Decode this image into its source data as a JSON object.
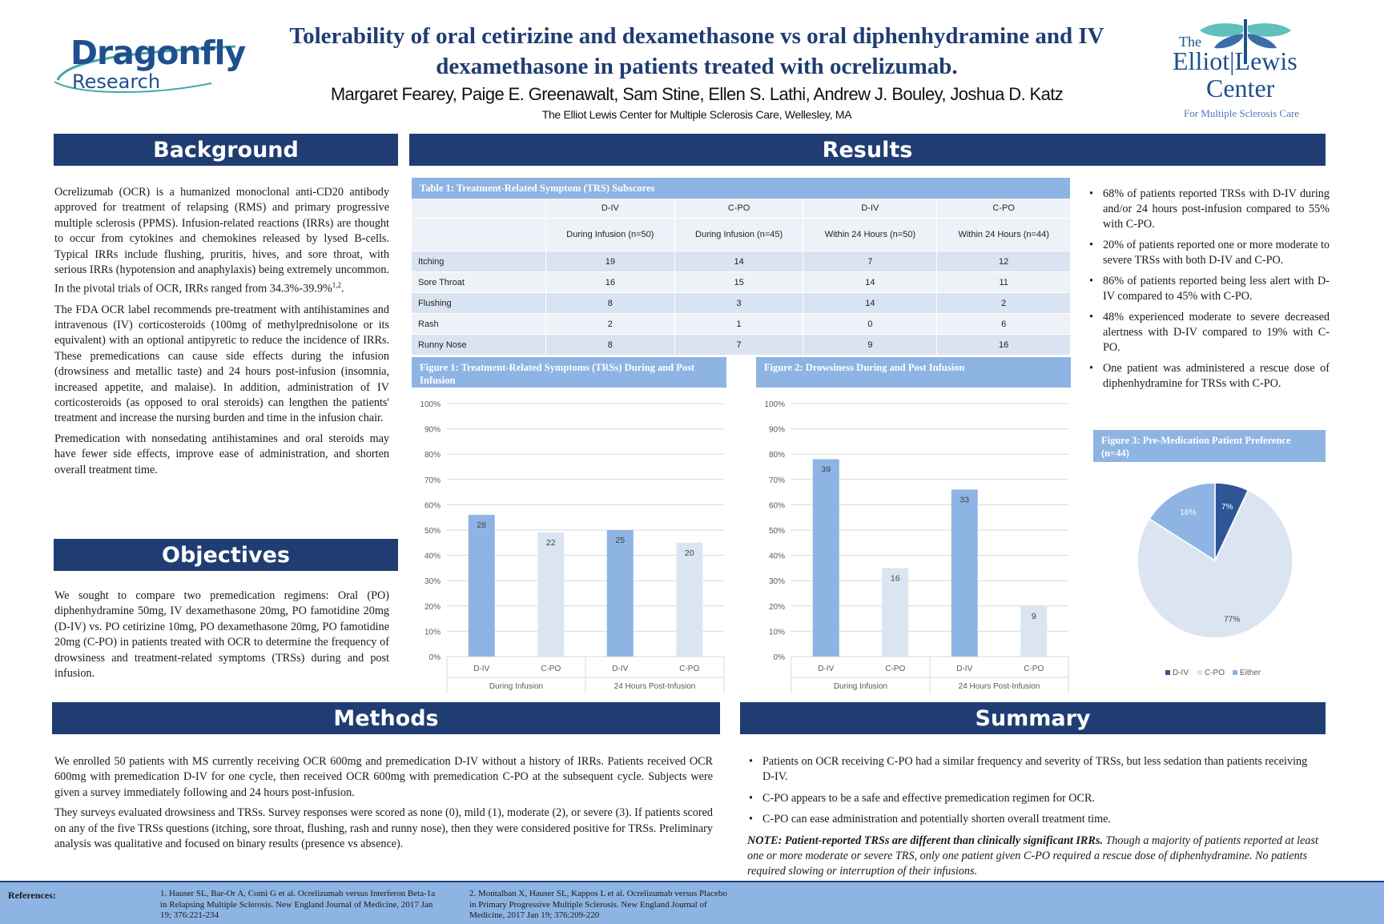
{
  "header": {
    "logo_left_line1": "Dragonfly",
    "logo_left_line2": "Research",
    "title_line1": "Tolerability of oral cetirizine and dexamethasone vs oral diphenhydramine and IV",
    "title_line2": "dexamethasone in patients treated with ocrelizumab.",
    "authors": "Margaret Fearey, Paige E. Greenawalt, Sam Stine, Ellen S. Lathi, Andrew J. Bouley, Joshua D. Katz",
    "affiliation": "The Elliot Lewis Center for Multiple Sclerosis Care, Wellesley, MA",
    "logo_right_the": "The",
    "logo_right_name1": "Elliot",
    "logo_right_name2": "Lewis",
    "logo_right_center": "Center",
    "logo_right_tag": "For Multiple Sclerosis Care"
  },
  "background": {
    "heading": "Background",
    "p1": "Ocrelizumab (OCR) is a humanized monoclonal anti-CD20 antibody approved for treatment of relapsing (RMS) and primary progressive multiple sclerosis (PPMS). Infusion-related reactions (IRRs) are thought to occur from cytokines and chemokines released by lysed B-cells. Typical IRRs include flushing, pruritis, hives, and sore throat, with serious IRRs (hypotension and anaphylaxis) being extremely uncommon. In the pivotal trials of OCR, IRRs ranged from 34.3%-39.9%",
    "p1_sup": "1,2",
    "p1_end": ".",
    "p2": "The FDA OCR label recommends pre-treatment with antihistamines and intravenous (IV) corticosteroids (100mg of methylprednisolone or its equivalent) with an optional antipyretic to reduce the incidence of IRRs. These premedications can cause side effects during the infusion (drowsiness and metallic taste) and 24 hours post-infusion (insomnia, increased appetite, and malaise). In addition, administration of IV corticosteroids (as opposed to oral steroids) can lengthen the patients' treatment and increase the nursing burden and time in the infusion chair.",
    "p3": "Premedication with nonsedating antihistamines and oral steroids may have fewer side effects, improve ease of administration, and shorten overall treatment time."
  },
  "objectives": {
    "heading": "Objectives",
    "p1": "We sought to compare two premedication regimens: Oral (PO) diphenhydramine 50mg, IV dexamethasone 20mg, PO famotidine 20mg (D-IV) vs. PO cetirizine 10mg, PO dexamethasone 20mg, PO famotidine 20mg (C-PO) in patients treated with OCR to determine the frequency of drowsiness and treatment-related symptoms (TRSs) during and post infusion."
  },
  "methods": {
    "heading": "Methods",
    "p1": "We enrolled 50 patients with MS currently receiving OCR 600mg and premedication D-IV without a history of IRRs. Patients received OCR 600mg with premedication D-IV for one cycle, then received OCR 600mg with premedication C-PO at the subsequent cycle. Subjects were given a survey immediately following and 24 hours post-infusion.",
    "p2": "They surveys evaluated drowsiness and TRSs. Survey responses were scored as none (0), mild (1), moderate (2), or severe (3). If patients scored on any of the five TRSs questions (itching, sore throat, flushing, rash and runny nose), then they were considered positive for TRSs. Preliminary analysis was qualitative and focused on binary results (presence vs absence)."
  },
  "results": {
    "heading": "Results",
    "table_caption": "Table 1: Treatment-Related Symptom (TRS) Subscores",
    "table_groups": [
      "D-IV",
      "C-PO",
      "D-IV",
      "C-PO"
    ],
    "table_subheads": [
      "During Infusion (n=50)",
      "During Infusion (n=45)",
      "Within 24 Hours (n=50)",
      "Within 24 Hours (n=44)"
    ],
    "table_rows": [
      {
        "label": "Itching",
        "values": [
          "19",
          "14",
          "7",
          "12"
        ]
      },
      {
        "label": "Sore Throat",
        "values": [
          "16",
          "15",
          "14",
          "11"
        ]
      },
      {
        "label": "Flushing",
        "values": [
          "8",
          "3",
          "14",
          "2"
        ]
      },
      {
        "label": "Rash",
        "values": [
          "2",
          "1",
          "0",
          "6"
        ]
      },
      {
        "label": "Runny Nose",
        "values": [
          "8",
          "7",
          "9",
          "16"
        ]
      }
    ],
    "bullets": [
      "68% of patients reported TRSs with D-IV during and/or 24 hours post-infusion compared to 55% with C-PO.",
      "20% of patients reported one or more moderate to severe TRSs with both D-IV and C-PO.",
      "86% of patients reported being less alert with D-IV compared to 45% with C-PO.",
      "48% experienced moderate to severe decreased alertness with D-IV compared to 19% with C-PO.",
      "One patient was administered a rescue dose of diphenhydramine for TRSs with C-PO."
    ],
    "fig1_caption": "Figure 1: Treatment-Related Symptoms (TRSs) During and Post Infusion",
    "fig2_caption": "Figure 2: Drowsiness During and Post Infusion",
    "fig3_caption": "Figure 3: Pre-Medication Patient Preference (n=44)"
  },
  "summary": {
    "heading": "Summary",
    "bullets": [
      "Patients on OCR receiving C-PO had a similar frequency and severity of TRSs, but less sedation than patients receiving D-IV.",
      "C-PO appears to be a safe and effective premedication regimen for OCR.",
      "C-PO can ease administration and potentially shorten overall treatment time."
    ],
    "note_bold": "NOTE: Patient-reported TRSs are different than clinically significant IRRs.",
    "note_rest": " Though a majority of patients reported at least one or more moderate or severe TRS, only one patient given C-PO required a rescue dose of diphenhydramine. No patients required slowing or interruption of their infusions."
  },
  "references": {
    "label": "References:",
    "ref1": "1. Hauser SL, Bar-Or A, Comi G et al. Ocrelizumab versus Interferon Beta-1a in Relapsing Multiple Sclerosis. New England Journal of Medicine, 2017 Jan 19; 376:221-234",
    "ref2": "2. Montalban X, Hauser SL, Kappos L et al. Ocrelizumab versus Placebo in Primary Progressive Multiple Sclerosis. New England Journal of Medicine, 2017 Jan 19; 376:209-220"
  },
  "colors": {
    "navy": "#1f3d73",
    "mid": "#8eb4e3",
    "light": "#dbe5f1",
    "dark": "#2f5597"
  },
  "chart_data": [
    {
      "id": "fig1",
      "type": "bar",
      "title": "Figure 1: Treatment-Related Symptoms (TRSs) During and Post Infusion",
      "categories": [
        "D-IV",
        "C-PO",
        "D-IV",
        "C-PO"
      ],
      "groups": [
        "During Infusion",
        "24 Hours Post-Infusion"
      ],
      "values": [
        56,
        49,
        50,
        45
      ],
      "labels": [
        "28",
        "22",
        "25",
        "20"
      ],
      "y_ticks": [
        "0%",
        "10%",
        "20%",
        "30%",
        "40%",
        "50%",
        "60%",
        "70%",
        "80%",
        "90%",
        "100%"
      ],
      "ylim": [
        0,
        100
      ]
    },
    {
      "id": "fig2",
      "type": "bar",
      "title": "Figure 2: Drowsiness During and Post Infusion",
      "categories": [
        "D-IV",
        "C-PO",
        "D-IV",
        "C-PO"
      ],
      "groups": [
        "During Infusion",
        "24 Hours Post-Infusion"
      ],
      "values": [
        78,
        35,
        66,
        20
      ],
      "labels": [
        "39",
        "16",
        "33",
        "9"
      ],
      "y_ticks": [
        "0%",
        "10%",
        "20%",
        "30%",
        "40%",
        "50%",
        "60%",
        "70%",
        "80%",
        "90%",
        "100%"
      ],
      "ylim": [
        0,
        100
      ]
    },
    {
      "id": "fig3",
      "type": "pie",
      "title": "Figure 3: Pre-Medication Patient Preference (n=44)",
      "slices": [
        {
          "name": "D-IV",
          "value": 7,
          "label": "7%"
        },
        {
          "name": "C-PO",
          "value": 77,
          "label": "77%"
        },
        {
          "name": "Either",
          "value": 16,
          "label": "16%"
        }
      ],
      "legend": [
        "D-IV",
        "C-PO",
        "Either"
      ]
    }
  ]
}
